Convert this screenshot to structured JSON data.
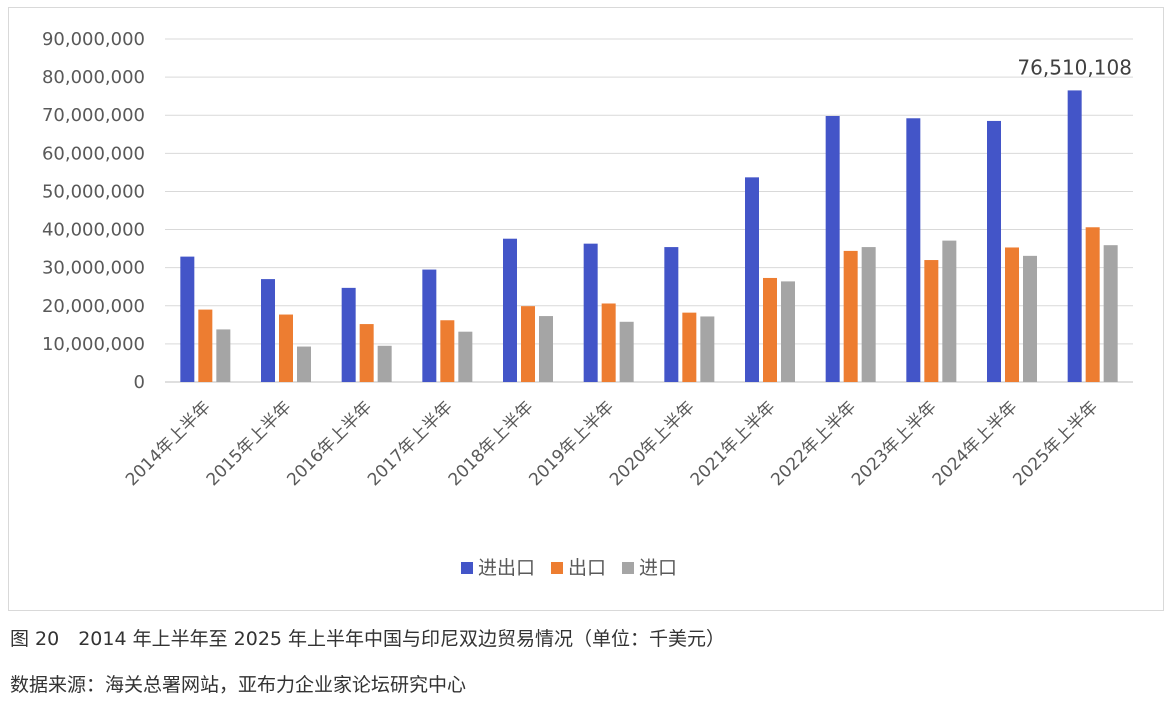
{
  "chart_data": {
    "type": "bar",
    "categories": [
      "2014年上半年",
      "2015年上半年",
      "2016年上半年",
      "2017年上半年",
      "2018年上半年",
      "2019年上半年",
      "2020年上半年",
      "2021年上半年",
      "2022年上半年",
      "2023年上半年",
      "2024年上半年",
      "2025年上半年"
    ],
    "series": [
      {
        "name": "进出口",
        "color": "#4355c8",
        "values": [
          32900000,
          27000000,
          24700000,
          29500000,
          37600000,
          36300000,
          35400000,
          53700000,
          69800000,
          69200000,
          68500000,
          76510108
        ]
      },
      {
        "name": "出口",
        "color": "#ed7d31",
        "values": [
          19000000,
          17700000,
          15200000,
          16200000,
          19900000,
          20600000,
          18200000,
          27300000,
          34400000,
          32000000,
          35300000,
          40600000
        ]
      },
      {
        "name": "进口",
        "color": "#a5a5a5",
        "values": [
          13800000,
          9300000,
          9500000,
          13200000,
          17300000,
          15800000,
          17200000,
          26400000,
          35400000,
          37100000,
          33100000,
          35900000
        ]
      }
    ],
    "ylim": [
      0,
      90000000
    ],
    "yticks": [
      "0",
      "10,000,000",
      "20,000,000",
      "30,000,000",
      "40,000,000",
      "50,000,000",
      "60,000,000",
      "70,000,000",
      "80,000,000",
      "90,000,000"
    ],
    "grid": true,
    "legend_position": "bottom",
    "annotation": {
      "label": "76,510,108",
      "category_index": 11,
      "series_index": 0
    }
  },
  "caption": {
    "figure": "图 20　2014 年上半年至 2025 年上半年中国与印尼双边贸易情况（单位：千美元）",
    "source": "数据来源：海关总署网站，亚布力企业家论坛研究中心"
  }
}
